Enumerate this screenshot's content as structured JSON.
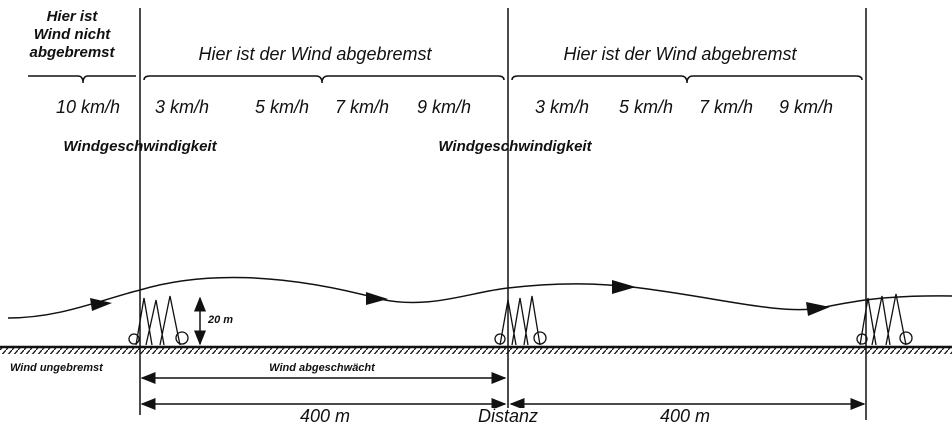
{
  "zones": [
    {
      "title": [
        "Hier ist",
        "Wind nicht",
        "abgebremst"
      ],
      "speeds": [
        "10 km/h"
      ]
    },
    {
      "title": "Hier ist der Wind abgebremst",
      "speeds": [
        "3 km/h",
        "5 km/h",
        "7 km/h",
        "9 km/h"
      ]
    },
    {
      "title": "Hier ist der Wind abgebremst",
      "speeds": [
        "3 km/h",
        "5 km/h",
        "7 km/h",
        "9 km/h"
      ]
    }
  ],
  "speed_captions": [
    "Windgeschwindigkeit",
    "Windgeschwindigkeit"
  ],
  "tree_height": "20 m",
  "ground_labels": {
    "unbraked": "Wind ungebremst",
    "weakened": "Wind abgeschwächt"
  },
  "distances": [
    "400 m",
    "400 m"
  ],
  "distance_axis": "Distanz"
}
